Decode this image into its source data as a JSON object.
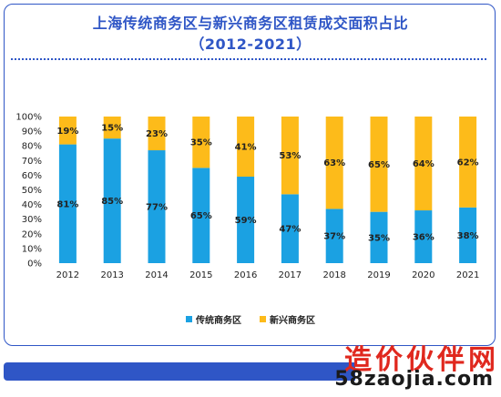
{
  "title_line1": "上海传统商务区与新兴商务区租赁成交面积占比",
  "title_line2": "（2012-2021）",
  "chart_data": {
    "type": "bar",
    "stacked": true,
    "categories": [
      "2012",
      "2013",
      "2014",
      "2015",
      "2016",
      "2017",
      "2018",
      "2019",
      "2020",
      "2021"
    ],
    "series": [
      {
        "name": "传统商务区",
        "color": "#1ba1e2",
        "values": [
          81,
          85,
          77,
          65,
          59,
          47,
          37,
          35,
          36,
          38
        ]
      },
      {
        "name": "新兴商务区",
        "color": "#fdbb1a",
        "values": [
          19,
          15,
          23,
          35,
          41,
          53,
          63,
          65,
          64,
          62
        ]
      }
    ],
    "yticks": [
      "0%",
      "10%",
      "20%",
      "30%",
      "40%",
      "50%",
      "60%",
      "70%",
      "80%",
      "90%",
      "100%"
    ],
    "ylim": [
      0,
      100
    ],
    "value_suffix": "%",
    "legend_position": "bottom",
    "grid": false
  },
  "legend": {
    "item1": "传统商务区",
    "item2": "新兴商务区"
  },
  "watermark": {
    "brand": "造价伙伴网",
    "url": "58zaojia.com"
  }
}
